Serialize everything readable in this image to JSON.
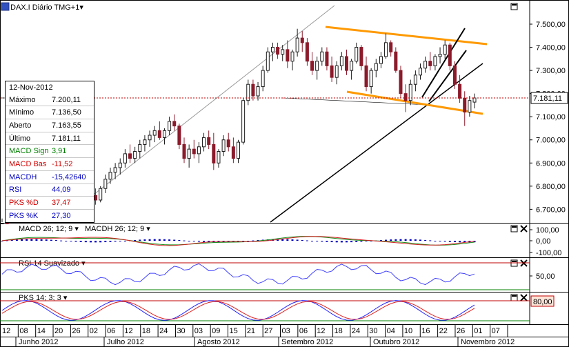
{
  "header": {
    "title": "DAX.I Diário TMG+1",
    "dropdown_glyph": "▾"
  },
  "info_panel": {
    "date": "12-Nov-2012",
    "rows": [
      {
        "label": "Máximo",
        "value": "7.200,11",
        "color": "#000000"
      },
      {
        "label": "Mínimo",
        "value": "7.136,50",
        "color": "#000000"
      },
      {
        "label": "Aberto",
        "value": "7.163,55",
        "color": "#000000"
      },
      {
        "label": "Último",
        "value": "7.181,11",
        "color": "#000000"
      },
      {
        "label": "MACD Sign",
        "value": "3,91",
        "color": "#008000"
      },
      {
        "label": "MACD Bas",
        "value": "-11,52",
        "color": "#d00000"
      },
      {
        "label": "MACDH",
        "value": "-15,42640",
        "color": "#0000c0"
      },
      {
        "label": "RSI",
        "value": "44,09",
        "color": "#0000c0"
      },
      {
        "label": "PKS %D",
        "value": "37,47",
        "color": "#d00000"
      },
      {
        "label": "PKS %K",
        "value": "27,30",
        "color": "#0000c0"
      }
    ]
  },
  "panels": {
    "macd": {
      "label": "MACD 26; 12; 9 ▾",
      "label2": "MACDH 26; 12; 9 ▾",
      "ticks": [
        "100,00",
        "0,00",
        "-100,00"
      ]
    },
    "rsi": {
      "label": "RSI 14 Suavizado ▾",
      "ticks": [
        "50,00"
      ]
    },
    "pks": {
      "label": "PKS 14; 3; 3 ▾",
      "value_box": "80,00"
    }
  },
  "colors": {
    "up": "#1a1a1a",
    "down": "#8b1a2b",
    "channel": "#ff9900",
    "last_line": "#c00000",
    "macdh": "#0000c0",
    "rsi": "#4040ff",
    "pks_k": "#2222ff",
    "pks_d": "#e02020"
  },
  "chart_data": {
    "type": "candlestick",
    "title": "DAX.I Diário TMG+1",
    "y_ticks": [
      7500,
      7400,
      7300,
      7200,
      7100,
      7000,
      6900,
      6800,
      6700
    ],
    "y_tick_labels": [
      "7.500,00",
      "7.400,00",
      "7.300,00",
      "7.200,00",
      "7.100,00",
      "7.000,00",
      "6.900,00",
      "6.800,00",
      "6.700,00"
    ],
    "ylim": [
      6660,
      7560
    ],
    "last_price": 7181.11,
    "last_price_label": "7.181,11",
    "x_day_labels": [
      "12",
      "08",
      "14",
      "20",
      "26",
      "02",
      "06",
      "12",
      "18",
      "24",
      "30",
      "03",
      "09",
      "15",
      "21",
      "27",
      "03",
      "06",
      "12",
      "18",
      "24",
      "30",
      "04",
      "10",
      "16",
      "22",
      "26",
      "01",
      "07"
    ],
    "x_month_labels": [
      "Junho 2012",
      "Julho 2012",
      "Agosto 2012",
      "Setembro 2012",
      "Outubro 2012",
      "Novembro 2012"
    ],
    "candles": [
      [
        6620,
        6660,
        6580,
        6640
      ],
      [
        6640,
        6680,
        6600,
        6620
      ],
      [
        6620,
        6680,
        6600,
        6670
      ],
      [
        6670,
        6700,
        6640,
        6650
      ],
      [
        6650,
        6700,
        6630,
        6690
      ],
      [
        6690,
        6730,
        6660,
        6700
      ],
      [
        6700,
        6720,
        6650,
        6660
      ],
      [
        6660,
        6700,
        6620,
        6690
      ],
      [
        6690,
        6740,
        6670,
        6720
      ],
      [
        6720,
        6780,
        6700,
        6760
      ],
      [
        6760,
        6780,
        6710,
        6720
      ],
      [
        6720,
        6760,
        6690,
        6740
      ],
      [
        6740,
        6790,
        6730,
        6780
      ],
      [
        6780,
        6820,
        6740,
        6750
      ],
      [
        6750,
        6780,
        6700,
        6710
      ],
      [
        6710,
        6760,
        6690,
        6750
      ],
      [
        6750,
        6800,
        6730,
        6780
      ],
      [
        6780,
        6820,
        6760,
        6800
      ],
      [
        6800,
        6830,
        6750,
        6760
      ],
      [
        6760,
        6790,
        6720,
        6740
      ],
      [
        6740,
        6800,
        6730,
        6790
      ],
      [
        6790,
        6850,
        6770,
        6830
      ],
      [
        6830,
        6880,
        6810,
        6860
      ],
      [
        6860,
        6900,
        6830,
        6880
      ],
      [
        6880,
        6920,
        6850,
        6900
      ],
      [
        6900,
        6960,
        6880,
        6940
      ],
      [
        6940,
        6980,
        6900,
        6920
      ],
      [
        6920,
        6970,
        6900,
        6950
      ],
      [
        6950,
        7000,
        6920,
        6980
      ],
      [
        6980,
        7020,
        6950,
        7000
      ],
      [
        7000,
        7040,
        6970,
        7020
      ],
      [
        7020,
        7060,
        6990,
        7040
      ],
      [
        7040,
        7080,
        7000,
        7010
      ],
      [
        7010,
        7050,
        6980,
        7040
      ],
      [
        7040,
        7100,
        7020,
        7080
      ],
      [
        7080,
        7110,
        7040,
        7060
      ],
      [
        7060,
        7070,
        6960,
        6980
      ],
      [
        6980,
        7010,
        6900,
        6920
      ],
      [
        6920,
        6980,
        6880,
        6960
      ],
      [
        6960,
        7000,
        6920,
        6940
      ],
      [
        6940,
        6990,
        6900,
        6970
      ],
      [
        6970,
        7030,
        6950,
        7010
      ],
      [
        7010,
        7040,
        6960,
        6980
      ],
      [
        6980,
        7030,
        6870,
        6900
      ],
      [
        6900,
        6960,
        6880,
        6950
      ],
      [
        6950,
        7020,
        6930,
        7000
      ],
      [
        7000,
        7030,
        6950,
        6970
      ],
      [
        6970,
        7010,
        6900,
        6920
      ],
      [
        6920,
        7000,
        6900,
        6990
      ],
      [
        6990,
        7180,
        6980,
        7170
      ],
      [
        7170,
        7260,
        7150,
        7240
      ],
      [
        7240,
        7260,
        7170,
        7190
      ],
      [
        7190,
        7250,
        7170,
        7230
      ],
      [
        7230,
        7320,
        7210,
        7300
      ],
      [
        7300,
        7400,
        7290,
        7380
      ],
      [
        7380,
        7420,
        7340,
        7400
      ],
      [
        7400,
        7420,
        7350,
        7370
      ],
      [
        7370,
        7410,
        7340,
        7390
      ],
      [
        7390,
        7430,
        7310,
        7340
      ],
      [
        7340,
        7390,
        7300,
        7380
      ],
      [
        7380,
        7480,
        7360,
        7440
      ],
      [
        7440,
        7470,
        7380,
        7420
      ],
      [
        7420,
        7440,
        7320,
        7340
      ],
      [
        7340,
        7380,
        7280,
        7300
      ],
      [
        7300,
        7360,
        7260,
        7340
      ],
      [
        7340,
        7400,
        7320,
        7380
      ],
      [
        7380,
        7400,
        7300,
        7320
      ],
      [
        7320,
        7360,
        7250,
        7270
      ],
      [
        7270,
        7340,
        7240,
        7320
      ],
      [
        7320,
        7380,
        7300,
        7360
      ],
      [
        7360,
        7390,
        7280,
        7300
      ],
      [
        7300,
        7350,
        7260,
        7340
      ],
      [
        7340,
        7420,
        7330,
        7400
      ],
      [
        7400,
        7410,
        7300,
        7320
      ],
      [
        7320,
        7360,
        7210,
        7230
      ],
      [
        7230,
        7310,
        7200,
        7300
      ],
      [
        7300,
        7350,
        7270,
        7330
      ],
      [
        7330,
        7380,
        7310,
        7360
      ],
      [
        7360,
        7460,
        7350,
        7420
      ],
      [
        7420,
        7430,
        7360,
        7380
      ],
      [
        7380,
        7400,
        7290,
        7300
      ],
      [
        7300,
        7320,
        7180,
        7200
      ],
      [
        7200,
        7240,
        7120,
        7170
      ],
      [
        7170,
        7260,
        7150,
        7240
      ],
      [
        7240,
        7300,
        7210,
        7280
      ],
      [
        7280,
        7330,
        7260,
        7310
      ],
      [
        7310,
        7360,
        7290,
        7340
      ],
      [
        7340,
        7380,
        7300,
        7320
      ],
      [
        7320,
        7370,
        7300,
        7360
      ],
      [
        7360,
        7400,
        7330,
        7370
      ],
      [
        7370,
        7430,
        7350,
        7410
      ],
      [
        7410,
        7420,
        7300,
        7320
      ],
      [
        7320,
        7340,
        7220,
        7240
      ],
      [
        7240,
        7280,
        7160,
        7180
      ],
      [
        7180,
        7210,
        7060,
        7120
      ],
      [
        7120,
        7190,
        7100,
        7170
      ],
      [
        7163,
        7200,
        7136,
        7181
      ]
    ]
  }
}
